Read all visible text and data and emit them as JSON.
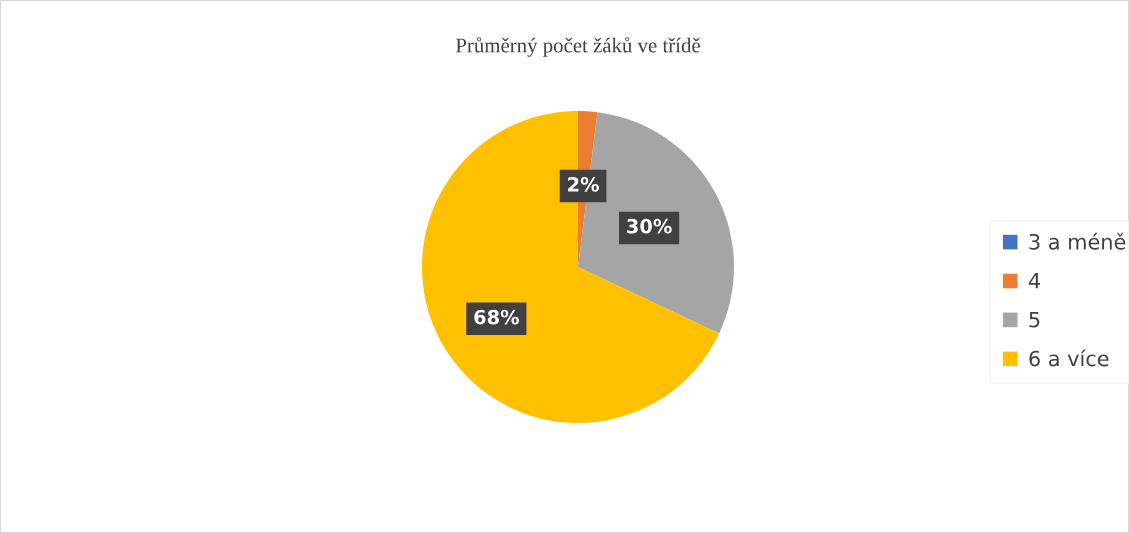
{
  "chart_data": {
    "type": "pie",
    "title": "Průměrný počet žáků ve třídě",
    "categories": [
      "3 a méně",
      "4",
      "5",
      "6 a více"
    ],
    "values": [
      0,
      2,
      30,
      68
    ],
    "colors": [
      "#4472c4",
      "#ed7d31",
      "#a5a5a5",
      "#ffc000"
    ],
    "value_labels": [
      null,
      "2%",
      "30%",
      "68%"
    ],
    "legend": "right"
  }
}
